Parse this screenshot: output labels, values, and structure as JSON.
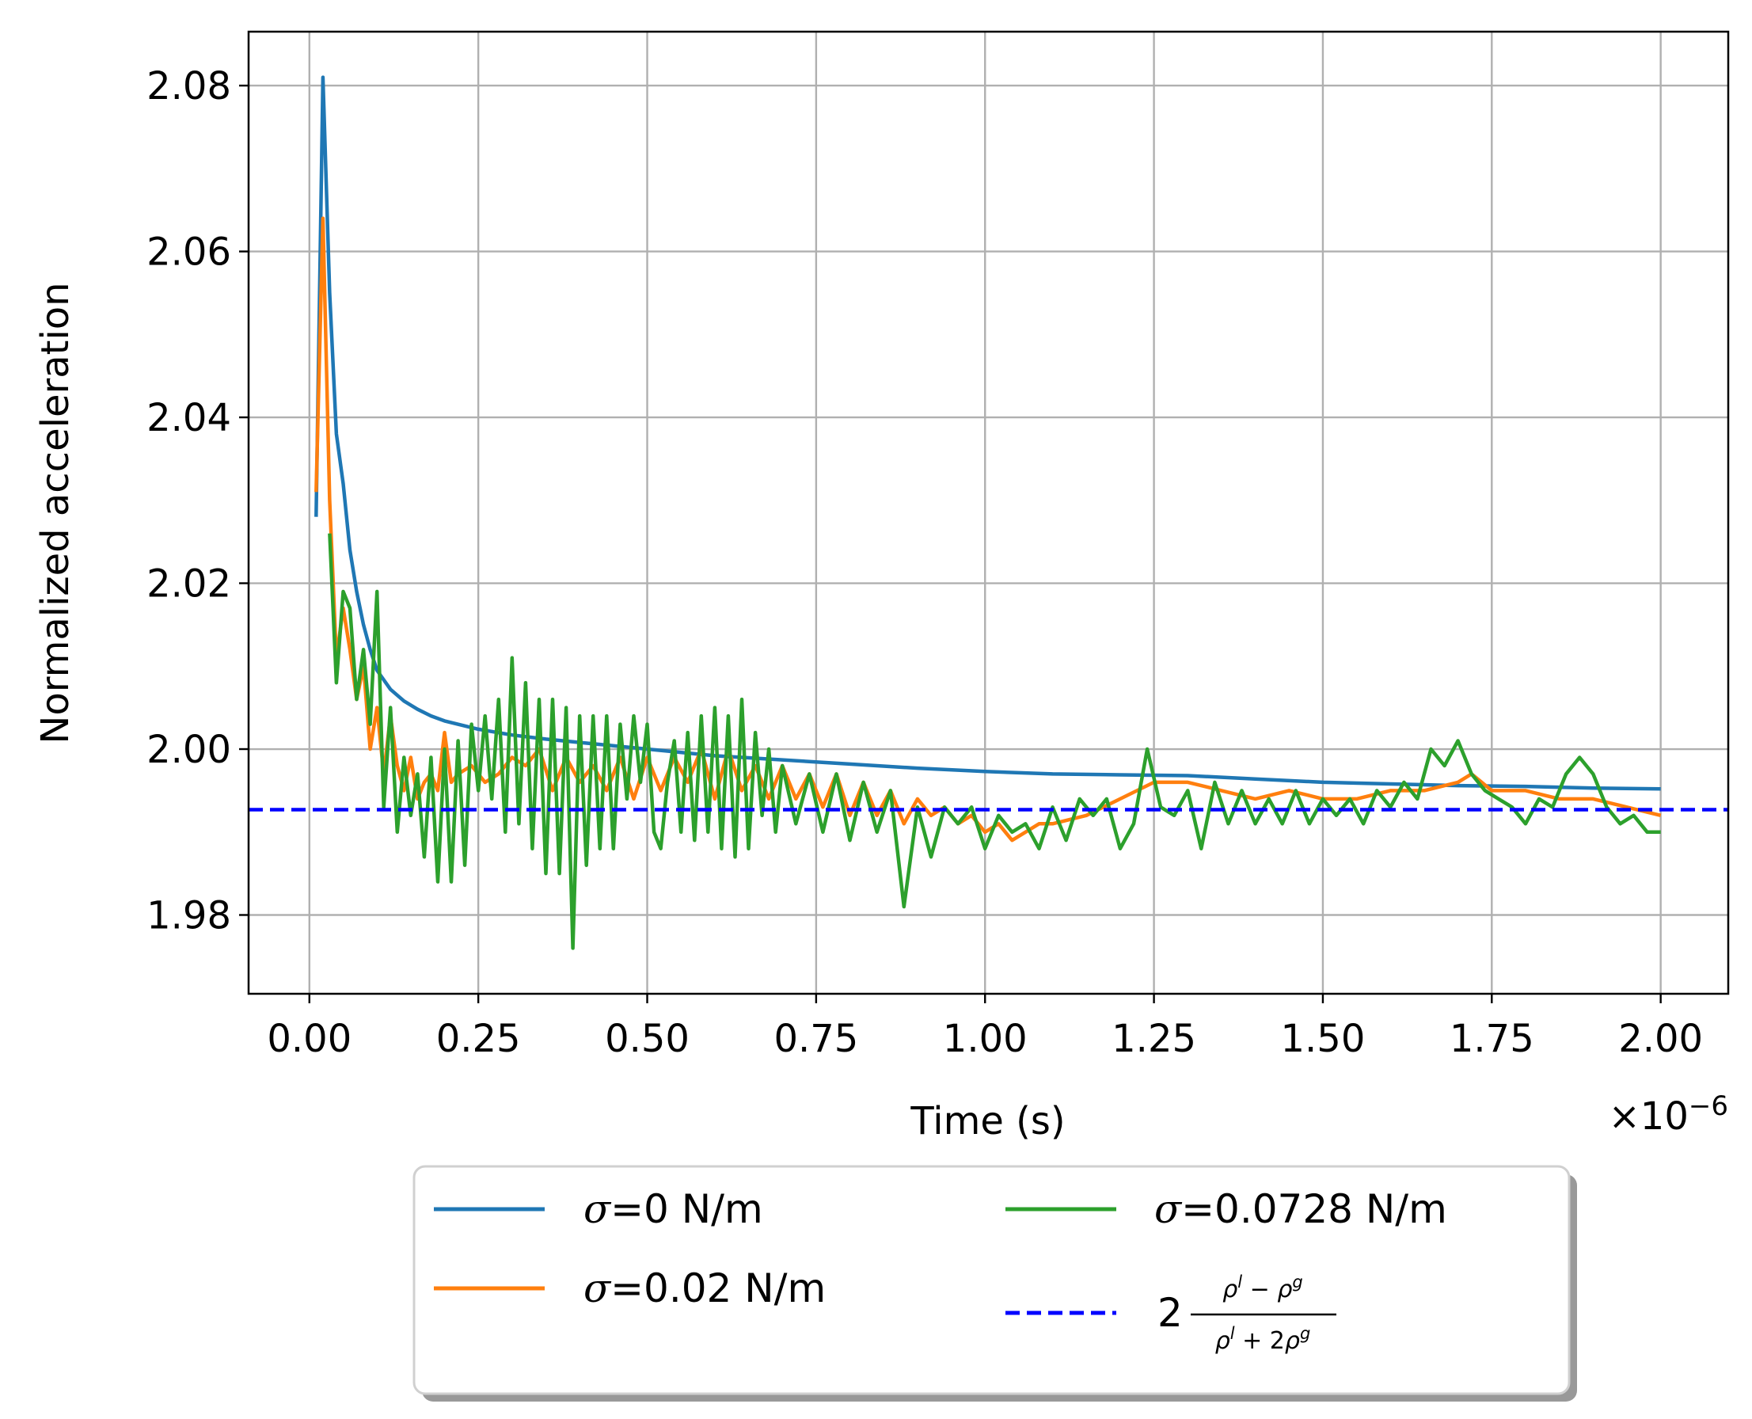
{
  "chart_data": {
    "type": "line",
    "title": "",
    "xlabel": "Time (s)",
    "ylabel": "Normalized acceleration",
    "x_offset_text": "×10",
    "x_offset_exponent": "−6",
    "xlim": [
      -0.09,
      2.1
    ],
    "ylim": [
      1.9705,
      2.0865
    ],
    "x_scale_factor": 1e-06,
    "grid": true,
    "legend_position": "below plot, two columns",
    "xticks": [
      0.0,
      0.25,
      0.5,
      0.75,
      1.0,
      1.25,
      1.5,
      1.75,
      2.0
    ],
    "xtick_labels": [
      "0.00",
      "0.25",
      "0.50",
      "0.75",
      "1.00",
      "1.25",
      "1.50",
      "1.75",
      "2.00"
    ],
    "yticks": [
      1.98,
      2.0,
      2.02,
      2.04,
      2.06,
      2.08
    ],
    "ytick_labels": [
      "1.98",
      "2.00",
      "2.02",
      "2.04",
      "2.06",
      "2.08"
    ],
    "series": [
      {
        "name": "σ=0 N/m",
        "label_symbol": "σ",
        "label_rest": "=0 N/m",
        "color": "#1f77b4",
        "style": "solid",
        "x": [
          0.01,
          0.02,
          0.03,
          0.04,
          0.05,
          0.06,
          0.07,
          0.08,
          0.09,
          0.1,
          0.12,
          0.14,
          0.16,
          0.18,
          0.2,
          0.25,
          0.3,
          0.35,
          0.4,
          0.5,
          0.6,
          0.7,
          0.8,
          0.9,
          1.0,
          1.1,
          1.2,
          1.3,
          1.4,
          1.5,
          1.6,
          1.7,
          1.8,
          1.9,
          2.0
        ],
        "y": [
          2.028,
          2.081,
          2.055,
          2.038,
          2.032,
          2.024,
          2.019,
          2.015,
          2.012,
          2.0095,
          2.0072,
          2.0058,
          2.0048,
          2.004,
          2.0034,
          2.0024,
          2.0017,
          2.0012,
          2.0008,
          2.0,
          1.9992,
          1.9987,
          1.9982,
          1.9977,
          1.9973,
          1.997,
          1.9969,
          1.9968,
          1.9964,
          1.996,
          1.9958,
          1.9956,
          1.9955,
          1.9953,
          1.9952
        ]
      },
      {
        "name": "σ=0.02 N/m",
        "label_symbol": "σ",
        "label_rest": "=0.02 N/m",
        "color": "#ff7f0e",
        "style": "solid",
        "x": [
          0.01,
          0.02,
          0.03,
          0.04,
          0.05,
          0.06,
          0.07,
          0.08,
          0.09,
          0.1,
          0.11,
          0.12,
          0.13,
          0.14,
          0.15,
          0.16,
          0.17,
          0.18,
          0.19,
          0.2,
          0.21,
          0.22,
          0.24,
          0.26,
          0.28,
          0.3,
          0.32,
          0.34,
          0.36,
          0.38,
          0.4,
          0.42,
          0.44,
          0.46,
          0.48,
          0.5,
          0.52,
          0.54,
          0.56,
          0.58,
          0.6,
          0.62,
          0.64,
          0.66,
          0.68,
          0.7,
          0.72,
          0.74,
          0.76,
          0.78,
          0.8,
          0.82,
          0.84,
          0.86,
          0.88,
          0.9,
          0.92,
          0.94,
          0.96,
          0.98,
          1.0,
          1.02,
          1.04,
          1.06,
          1.08,
          1.1,
          1.15,
          1.2,
          1.25,
          1.3,
          1.35,
          1.4,
          1.45,
          1.5,
          1.55,
          1.6,
          1.65,
          1.7,
          1.72,
          1.75,
          1.8,
          1.85,
          1.9,
          1.95,
          2.0
        ],
        "y": [
          2.031,
          2.064,
          2.03,
          2.011,
          2.017,
          2.012,
          2.006,
          2.01,
          2.0,
          2.005,
          1.997,
          2.004,
          1.998,
          1.995,
          1.999,
          1.994,
          1.996,
          1.997,
          1.995,
          2.002,
          1.996,
          1.997,
          1.998,
          1.996,
          1.997,
          1.999,
          1.998,
          2.0,
          1.995,
          1.999,
          1.996,
          1.998,
          1.995,
          1.999,
          1.994,
          1.999,
          1.995,
          1.999,
          1.996,
          2.0,
          1.994,
          2.0,
          1.995,
          1.998,
          1.994,
          1.998,
          1.994,
          1.997,
          1.993,
          1.997,
          1.992,
          1.996,
          1.992,
          1.995,
          1.991,
          1.994,
          1.992,
          1.993,
          1.991,
          1.992,
          1.99,
          1.991,
          1.989,
          1.99,
          1.991,
          1.991,
          1.992,
          1.994,
          1.996,
          1.996,
          1.995,
          1.994,
          1.995,
          1.994,
          1.994,
          1.995,
          1.995,
          1.996,
          1.997,
          1.995,
          1.995,
          1.994,
          1.994,
          1.993,
          1.992
        ]
      },
      {
        "name": "σ=0.0728 N/m",
        "label_symbol": "σ",
        "label_rest": "=0.0728 N/m",
        "color": "#2ca02c",
        "style": "solid",
        "x": [
          0.03,
          0.04,
          0.05,
          0.06,
          0.07,
          0.08,
          0.09,
          0.1,
          0.11,
          0.12,
          0.13,
          0.14,
          0.15,
          0.16,
          0.17,
          0.18,
          0.19,
          0.2,
          0.21,
          0.22,
          0.23,
          0.24,
          0.25,
          0.26,
          0.27,
          0.28,
          0.29,
          0.3,
          0.31,
          0.32,
          0.33,
          0.34,
          0.35,
          0.36,
          0.37,
          0.38,
          0.39,
          0.4,
          0.41,
          0.42,
          0.43,
          0.44,
          0.45,
          0.46,
          0.47,
          0.48,
          0.49,
          0.5,
          0.51,
          0.52,
          0.53,
          0.54,
          0.55,
          0.56,
          0.57,
          0.58,
          0.59,
          0.6,
          0.61,
          0.62,
          0.63,
          0.64,
          0.65,
          0.66,
          0.67,
          0.68,
          0.69,
          0.7,
          0.72,
          0.74,
          0.76,
          0.78,
          0.8,
          0.82,
          0.84,
          0.86,
          0.88,
          0.9,
          0.92,
          0.94,
          0.96,
          0.98,
          1.0,
          1.02,
          1.04,
          1.06,
          1.08,
          1.1,
          1.12,
          1.14,
          1.16,
          1.18,
          1.2,
          1.22,
          1.24,
          1.26,
          1.28,
          1.3,
          1.32,
          1.34,
          1.36,
          1.38,
          1.4,
          1.42,
          1.44,
          1.46,
          1.48,
          1.5,
          1.52,
          1.54,
          1.56,
          1.58,
          1.6,
          1.62,
          1.64,
          1.66,
          1.68,
          1.7,
          1.72,
          1.74,
          1.76,
          1.78,
          1.8,
          1.82,
          1.84,
          1.86,
          1.88,
          1.9,
          1.92,
          1.94,
          1.96,
          1.98,
          2.0
        ],
        "y": [
          2.026,
          2.008,
          2.019,
          2.017,
          2.006,
          2.012,
          2.003,
          2.019,
          1.993,
          2.005,
          1.99,
          1.999,
          1.992,
          1.997,
          1.987,
          1.999,
          1.984,
          2.0,
          1.984,
          2.001,
          1.986,
          2.003,
          1.995,
          2.004,
          1.994,
          2.006,
          1.99,
          2.011,
          1.991,
          2.008,
          1.988,
          2.006,
          1.985,
          2.006,
          1.985,
          2.005,
          1.976,
          2.004,
          1.986,
          2.004,
          1.988,
          2.004,
          1.988,
          2.003,
          1.994,
          2.004,
          1.996,
          2.003,
          1.99,
          1.988,
          1.996,
          2.001,
          1.99,
          2.002,
          1.989,
          2.004,
          1.99,
          2.005,
          1.988,
          2.004,
          1.987,
          2.006,
          1.988,
          2.002,
          1.992,
          2.0,
          1.99,
          1.998,
          1.991,
          1.997,
          1.99,
          1.997,
          1.989,
          1.996,
          1.99,
          1.995,
          1.981,
          1.993,
          1.987,
          1.993,
          1.991,
          1.993,
          1.988,
          1.992,
          1.99,
          1.991,
          1.988,
          1.993,
          1.989,
          1.994,
          1.992,
          1.994,
          1.988,
          1.991,
          2.0,
          1.993,
          1.992,
          1.995,
          1.988,
          1.996,
          1.991,
          1.995,
          1.991,
          1.994,
          1.991,
          1.995,
          1.991,
          1.994,
          1.992,
          1.994,
          1.991,
          1.995,
          1.993,
          1.996,
          1.994,
          2.0,
          1.998,
          2.001,
          1.997,
          1.995,
          1.994,
          1.993,
          1.991,
          1.994,
          1.993,
          1.997,
          1.999,
          1.997,
          1.993,
          1.991,
          1.992,
          1.99,
          1.99
        ]
      },
      {
        "name": "2(ρˡ−ρᵍ)/(ρˡ+2ρᵍ)",
        "color": "#0000ff",
        "style": "dashed",
        "constant_y": 1.9927,
        "formula": {
          "coef": "2",
          "rho": "ρ",
          "l": "l",
          "g": "g",
          "minus": " − ",
          "plus": " + 2"
        }
      }
    ]
  }
}
